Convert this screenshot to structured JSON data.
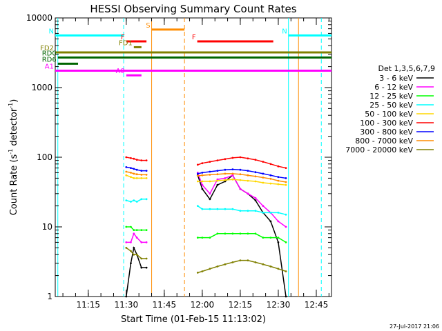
{
  "chart_data": {
    "type": "line",
    "title": "HESSI Observing Summary Count Rates",
    "xlabel": "Start Time (01-Feb-15 11:13:02)",
    "ylabel_main": "Count Rate (s",
    "ylabel_sup1": "-1",
    "ylabel_mid": " detector",
    "ylabel_sup2": "-1",
    "ylabel_end": ")",
    "x_range_minutes": [
      11.033,
      12.85
    ],
    "y_scale": "log",
    "ylim": [
      1,
      10000
    ],
    "x_ticks": [
      "11:15",
      "11:30",
      "11:45",
      "12:00",
      "12:15",
      "12:30",
      "12:45"
    ],
    "y_ticks": [
      "1",
      "10",
      "100",
      "1000",
      "10000"
    ],
    "legend_title": "Det 1,3,5,6,7,9",
    "legend_position": "right",
    "footer_date": "27-Jul-2017 21:06",
    "gaps": [
      [
        11.633,
        11.97
      ],
      [
        12.55,
        12.85
      ]
    ],
    "series": [
      {
        "name": "3 - 6 keV",
        "color": "#000000",
        "values_t": [
          11.5,
          11.53,
          11.55,
          11.57,
          11.6,
          11.633,
          11.97,
          12.0,
          12.05,
          12.1,
          12.15,
          12.2,
          12.25,
          12.3,
          12.35,
          12.4,
          12.45,
          12.5,
          12.55
        ],
        "values_y": [
          1,
          3,
          5,
          4,
          2.6,
          2.6,
          55,
          35,
          25,
          40,
          45,
          55,
          35,
          30,
          24,
          16,
          12,
          6,
          1
        ]
      },
      {
        "name": "6 - 12 keV",
        "color": "#ff00ff",
        "values_t": [
          11.5,
          11.53,
          11.55,
          11.57,
          11.6,
          11.633,
          11.97,
          12.0,
          12.05,
          12.1,
          12.15,
          12.2,
          12.25,
          12.3,
          12.35,
          12.4,
          12.45,
          12.5,
          12.55
        ],
        "values_y": [
          6,
          6,
          8,
          7,
          6,
          6,
          60,
          40,
          30,
          48,
          50,
          55,
          35,
          30,
          26,
          20,
          16,
          12,
          10
        ]
      },
      {
        "name": "12 - 25 keV",
        "color": "#00ff00",
        "values_t": [
          11.5,
          11.53,
          11.55,
          11.57,
          11.6,
          11.633,
          11.97,
          12.0,
          12.05,
          12.1,
          12.15,
          12.2,
          12.25,
          12.3,
          12.35,
          12.4,
          12.45,
          12.5,
          12.55
        ],
        "values_y": [
          10,
          10,
          9,
          9,
          9,
          9,
          7,
          7,
          7,
          8,
          8,
          8,
          8,
          8,
          8,
          7,
          7,
          7,
          6
        ]
      },
      {
        "name": "25 - 50 keV",
        "color": "#00ffff",
        "values_t": [
          11.5,
          11.53,
          11.55,
          11.57,
          11.6,
          11.633,
          11.97,
          12.0,
          12.05,
          12.1,
          12.15,
          12.2,
          12.25,
          12.3,
          12.35,
          12.4,
          12.45,
          12.5,
          12.55
        ],
        "values_y": [
          24,
          23,
          24,
          23,
          25,
          25,
          20,
          18,
          18,
          18,
          18,
          18,
          17,
          17,
          17,
          16,
          16,
          16,
          15
        ]
      },
      {
        "name": "50 - 100 keV",
        "color": "#ffd700",
        "values_t": [
          11.5,
          11.53,
          11.55,
          11.57,
          11.6,
          11.633,
          11.97,
          12.0,
          12.05,
          12.1,
          12.15,
          12.2,
          12.25,
          12.3,
          12.35,
          12.4,
          12.45,
          12.5,
          12.55
        ],
        "values_y": [
          55,
          52,
          50,
          50,
          50,
          50,
          45,
          45,
          45,
          46,
          47,
          48,
          47,
          46,
          45,
          43,
          42,
          41,
          40
        ]
      },
      {
        "name": "100 - 300 keV",
        "color": "#ff0000",
        "values_t": [
          11.5,
          11.53,
          11.55,
          11.57,
          11.6,
          11.633,
          11.97,
          12.0,
          12.05,
          12.1,
          12.15,
          12.2,
          12.25,
          12.3,
          12.35,
          12.4,
          12.45,
          12.5,
          12.55
        ],
        "values_y": [
          100,
          97,
          95,
          92,
          90,
          90,
          78,
          82,
          86,
          90,
          94,
          98,
          100,
          96,
          92,
          86,
          80,
          74,
          70
        ]
      },
      {
        "name": "300 - 800 keV",
        "color": "#0000ff",
        "values_t": [
          11.5,
          11.53,
          11.55,
          11.57,
          11.6,
          11.633,
          11.97,
          12.0,
          12.05,
          12.1,
          12.15,
          12.2,
          12.25,
          12.3,
          12.35,
          12.4,
          12.45,
          12.5,
          12.55
        ],
        "values_y": [
          72,
          70,
          68,
          66,
          64,
          64,
          58,
          60,
          62,
          64,
          66,
          67,
          66,
          64,
          61,
          58,
          55,
          52,
          50
        ]
      },
      {
        "name": "800 - 7000 keV",
        "color": "#ff8c00",
        "values_t": [
          11.5,
          11.53,
          11.55,
          11.57,
          11.6,
          11.633,
          11.97,
          12.0,
          12.05,
          12.1,
          12.15,
          12.2,
          12.25,
          12.3,
          12.35,
          12.4,
          12.45,
          12.5,
          12.55
        ],
        "values_y": [
          62,
          60,
          58,
          57,
          56,
          56,
          54,
          55,
          56,
          57,
          58,
          58,
          57,
          55,
          53,
          51,
          49,
          46,
          44
        ]
      },
      {
        "name": "7000 - 20000 keV",
        "color": "#808000",
        "values_t": [
          11.5,
          11.53,
          11.55,
          11.57,
          11.6,
          11.633,
          11.97,
          12.0,
          12.05,
          12.1,
          12.15,
          12.2,
          12.25,
          12.3,
          12.35,
          12.4,
          12.45,
          12.5,
          12.55
        ],
        "values_y": [
          5,
          4.5,
          4,
          4,
          3.5,
          3.5,
          2.2,
          2.3,
          2.5,
          2.7,
          2.9,
          3.1,
          3.3,
          3.3,
          3.1,
          2.9,
          2.7,
          2.5,
          2.3
        ]
      }
    ],
    "flag_bars": [
      {
        "label": "N",
        "color": "#00ffff",
        "t": [
          11.033,
          11.483
        ],
        "y": 5600
      },
      {
        "label": "N",
        "color": "#00ffff",
        "t": [
          12.567,
          12.85
        ],
        "y": 5600
      },
      {
        "label": "S",
        "color": "#ff8c00",
        "t": [
          11.667,
          11.883
        ],
        "y": 6800
      },
      {
        "label": "F",
        "color": "#ff0000",
        "t": [
          11.5,
          11.633
        ],
        "y": 4600
      },
      {
        "label": "F",
        "color": "#ff0000",
        "t": [
          11.967,
          12.467
        ],
        "y": 4600
      },
      {
        "label": "FD1",
        "color": "#808000",
        "t": [
          11.55,
          11.6
        ],
        "y": 3800
      },
      {
        "label": "FD2",
        "color": "#808000",
        "t": [
          11.033,
          12.85
        ],
        "y": 3200
      },
      {
        "label": "RD0",
        "color": "#006400",
        "t": [
          11.05,
          12.85
        ],
        "y": 2700
      },
      {
        "label": "RD6",
        "color": "#006400",
        "t": [
          11.05,
          11.183
        ],
        "y": 2200
      },
      {
        "label": "A1",
        "color": "#ff00ff",
        "t": [
          11.033,
          12.85
        ],
        "y": 1750
      },
      {
        "label": "A0",
        "color": "#ff00ff",
        "t": [
          11.5,
          11.6
        ],
        "y": 1500
      }
    ],
    "vertical_markers": [
      {
        "color": "#00ffff",
        "t": 11.05,
        "style": "solid"
      },
      {
        "color": "#00ffff",
        "t": 11.483,
        "style": "dashed"
      },
      {
        "color": "#ff8c00",
        "t": 11.667,
        "style": "solid"
      },
      {
        "color": "#ff8c00",
        "t": 11.883,
        "style": "dashed"
      },
      {
        "color": "#00ffff",
        "t": 12.567,
        "style": "solid"
      },
      {
        "color": "#ff8c00",
        "t": 12.633,
        "style": "solid"
      },
      {
        "color": "#00ffff",
        "t": 12.783,
        "style": "dashed"
      }
    ]
  }
}
